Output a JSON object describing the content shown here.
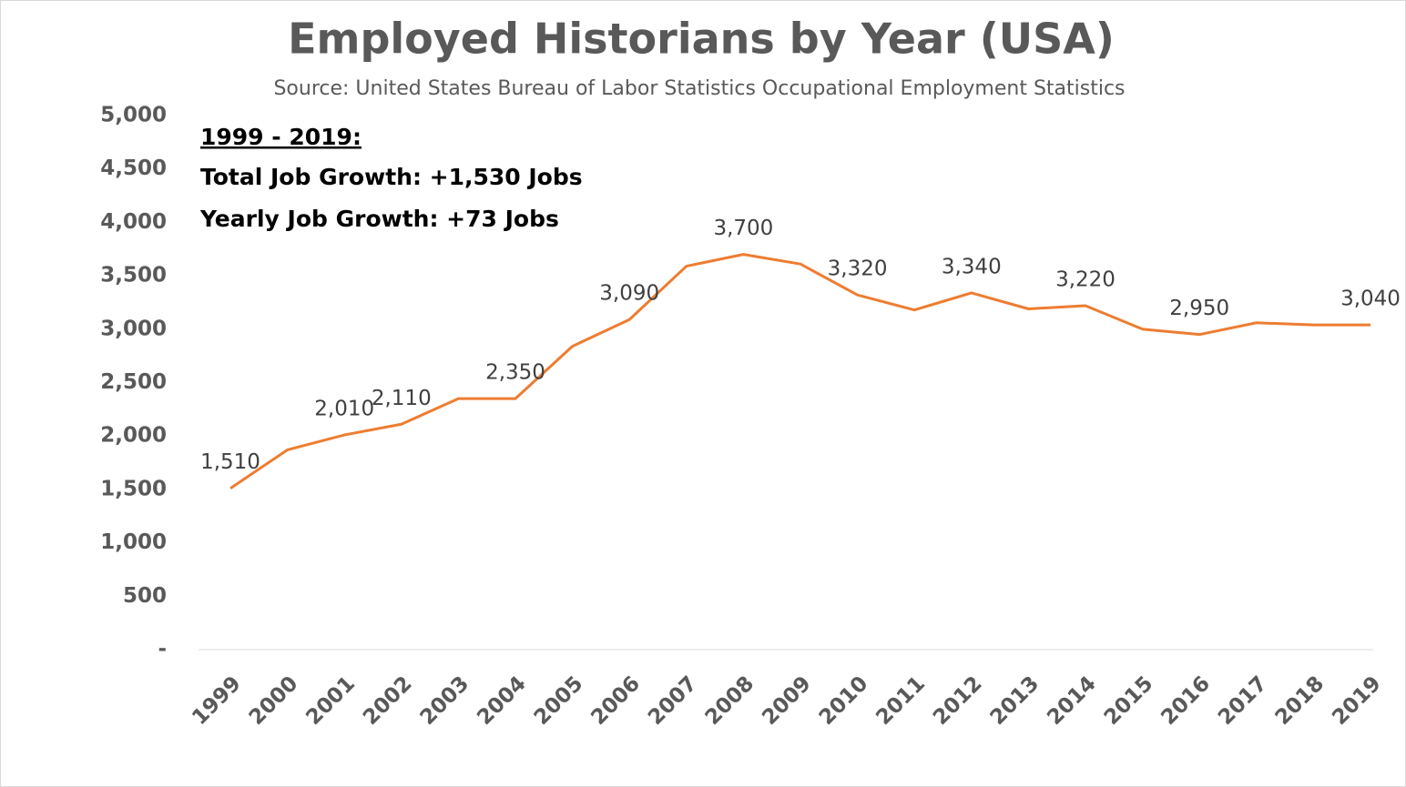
{
  "chart_data": {
    "type": "line",
    "title": "Employed Historians by Year (USA)",
    "subtitle": "Source: United States Bureau of Labor Statistics Occupational Employment Statistics",
    "annotations": [
      "1999 - 2019:",
      "Total Job Growth: +1,530 Jobs",
      "Yearly Job Growth: +73 Jobs"
    ],
    "categories": [
      "1999",
      "2000",
      "2001",
      "2002",
      "2003",
      "2004",
      "2005",
      "2006",
      "2007",
      "2008",
      "2009",
      "2010",
      "2011",
      "2012",
      "2013",
      "2014",
      "2015",
      "2016",
      "2017",
      "2018",
      "2019"
    ],
    "series": [
      {
        "name": "Employed Historians",
        "color": "#ed7d31",
        "values": [
          1510,
          1870,
          2010,
          2110,
          2350,
          2350,
          2840,
          3090,
          3590,
          3700,
          3610,
          3320,
          3180,
          3340,
          3190,
          3220,
          3000,
          2950,
          3060,
          3040,
          3040
        ],
        "value_labels": [
          "1,510",
          null,
          "2,010",
          "2,110",
          null,
          "2,350",
          null,
          "3,090",
          null,
          "3,700",
          null,
          "3,320",
          null,
          "3,340",
          null,
          "3,220",
          null,
          "2,950",
          null,
          null,
          "3,040"
        ]
      }
    ],
    "ylim": [
      0,
      5000
    ],
    "yticks": [
      {
        "value": 0,
        "label": "-"
      },
      500,
      {
        "value": 1000,
        "label": "1,000"
      },
      {
        "value": 1500,
        "label": "1,500"
      },
      {
        "value": 2000,
        "label": "2,000"
      },
      {
        "value": 2500,
        "label": "2,500"
      },
      {
        "value": 3000,
        "label": "3,000"
      },
      {
        "value": 3500,
        "label": "3,500"
      },
      {
        "value": 4000,
        "label": "4,000"
      },
      {
        "value": 4500,
        "label": "4,500"
      },
      {
        "value": 5000,
        "label": "5,000"
      }
    ],
    "grid": false
  }
}
